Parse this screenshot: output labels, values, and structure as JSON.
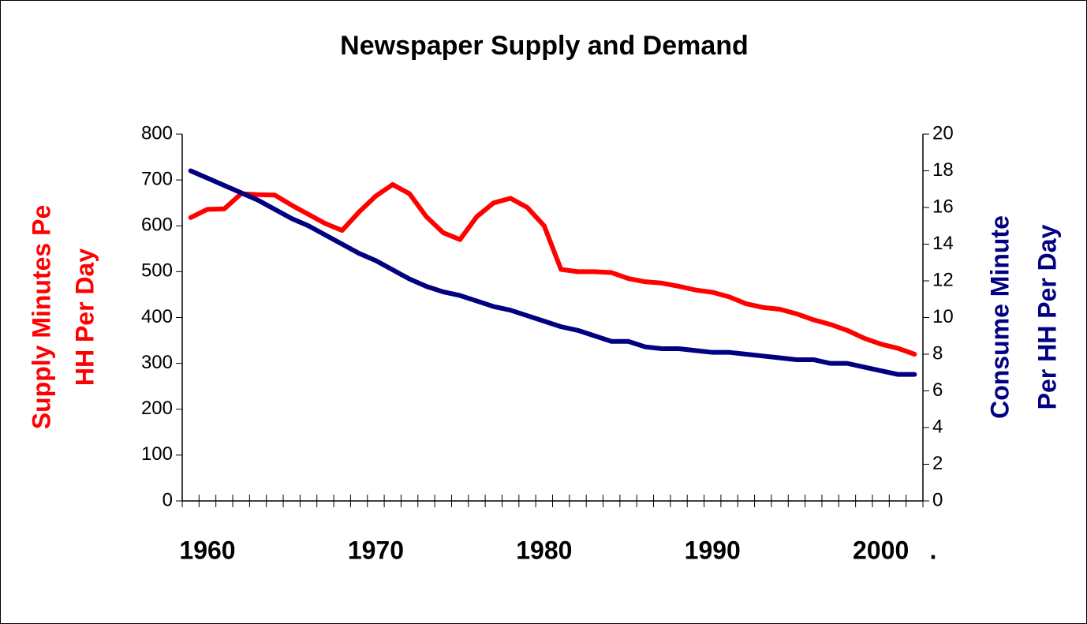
{
  "chart_data": {
    "type": "line",
    "title": "Newspaper Supply and Demand",
    "y_label": [
      "Supply Minutes Pe",
      "HH Per Day"
    ],
    "y2_label": [
      "Consume Minute",
      "Per HH Per Day"
    ],
    "categories": [
      null,
      "1960",
      null,
      null,
      null,
      null,
      null,
      null,
      null,
      null,
      null,
      "1970",
      null,
      null,
      null,
      null,
      null,
      null,
      null,
      null,
      null,
      "1980",
      null,
      null,
      null,
      null,
      null,
      null,
      null,
      null,
      null,
      "1990",
      null,
      null,
      null,
      null,
      null,
      null,
      null,
      null,
      null,
      "2000",
      null,
      null
    ],
    "annotation": ".",
    "series": [
      {
        "color": "#ff0000",
        "values": [
          618,
          636,
          637,
          670,
          668,
          667,
          645,
          625,
          605,
          590,
          630,
          665,
          690,
          670,
          620,
          585,
          570,
          620,
          650,
          660,
          640,
          600,
          505,
          500,
          500,
          498,
          485,
          478,
          475,
          468,
          460,
          455,
          445,
          430,
          422,
          418,
          408,
          395,
          385,
          372,
          355,
          342,
          333,
          320
        ]
      },
      {
        "color": "#000080",
        "axis": "y2",
        "values": [
          18,
          17.6,
          17.2,
          16.8,
          16.4,
          15.9,
          15.4,
          15.0,
          14.5,
          14.0,
          13.5,
          13.1,
          12.6,
          12.1,
          11.7,
          11.4,
          11.2,
          10.9,
          10.6,
          10.4,
          10.1,
          9.8,
          9.5,
          9.3,
          9.0,
          8.7,
          8.7,
          8.4,
          8.3,
          8.3,
          8.2,
          8.1,
          8.1,
          8.0,
          7.9,
          7.8,
          7.7,
          7.7,
          7.5,
          7.5,
          7.3,
          7.1,
          6.9,
          6.9
        ]
      }
    ],
    "ylim": [
      0,
      800
    ],
    "yticks": [
      0,
      100,
      200,
      300,
      400,
      500,
      600,
      700,
      800
    ],
    "y2lim": [
      0,
      20
    ],
    "y2ticks": [
      0,
      2,
      4,
      6,
      8,
      10,
      12,
      14,
      16,
      18,
      20
    ]
  }
}
